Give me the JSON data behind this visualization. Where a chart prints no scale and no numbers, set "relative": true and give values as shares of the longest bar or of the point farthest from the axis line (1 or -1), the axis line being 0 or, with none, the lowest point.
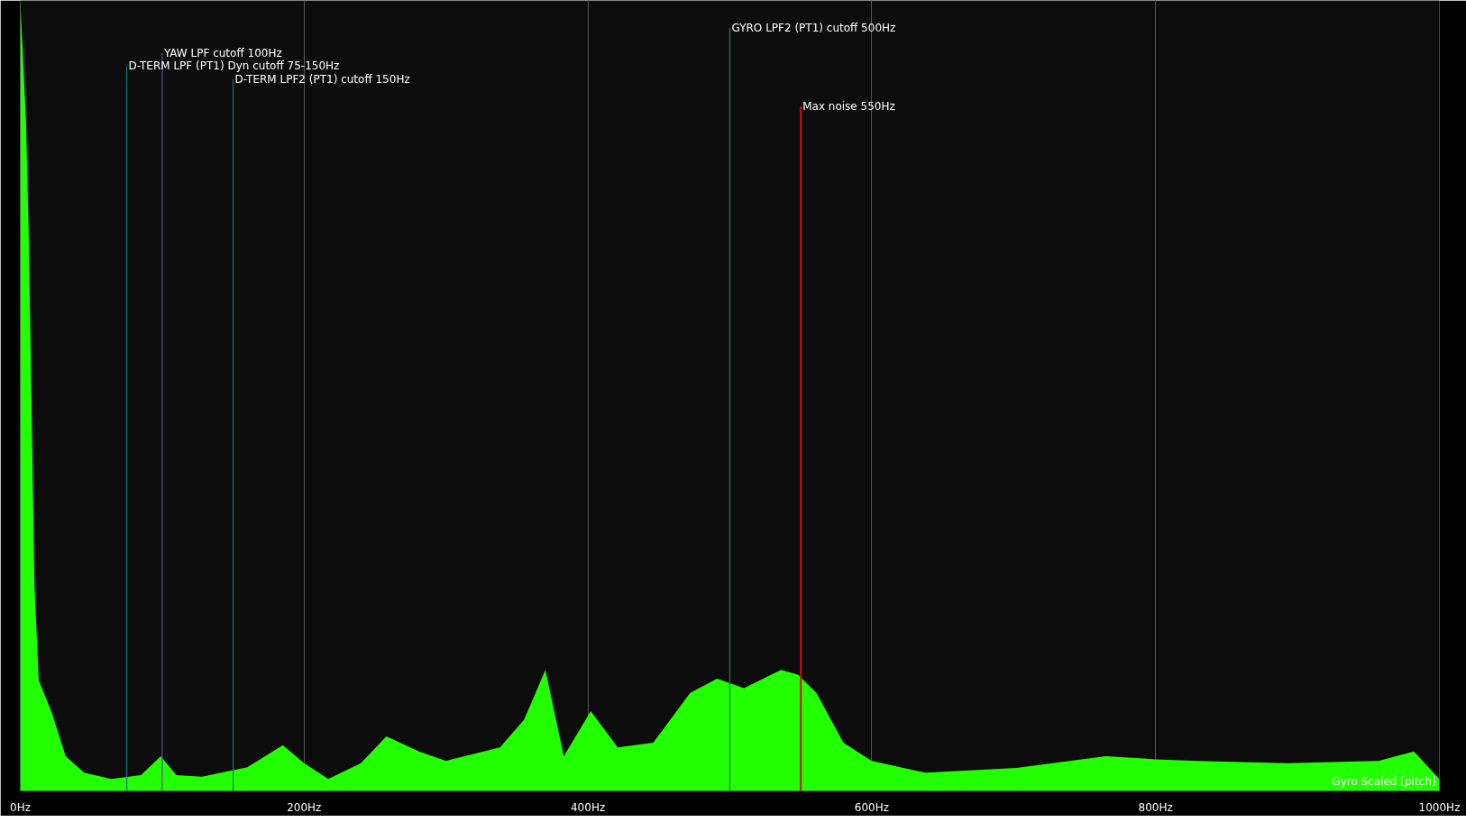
{
  "chart_data": {
    "type": "area",
    "relative": true,
    "x": [
      0,
      4,
      6,
      10,
      13,
      22,
      32,
      45,
      64,
      85,
      99,
      110,
      128,
      160,
      185,
      200,
      217,
      240,
      258,
      281,
      300,
      338,
      355,
      370,
      383,
      402,
      421,
      446,
      472,
      491,
      510,
      536,
      548,
      561,
      580,
      600,
      638,
      702,
      765,
      800,
      829,
      893,
      957,
      982,
      1000
    ],
    "series": [
      {
        "color": "#22ff00",
        "values": [
          1.0,
          0.85,
          0.7,
          0.26,
          0.14,
          0.1,
          0.044,
          0.023,
          0.015,
          0.02,
          0.044,
          0.02,
          0.018,
          0.03,
          0.058,
          0.035,
          0.015,
          0.035,
          0.069,
          0.05,
          0.038,
          0.055,
          0.09,
          0.153,
          0.044,
          0.101,
          0.055,
          0.061,
          0.124,
          0.142,
          0.13,
          0.153,
          0.147,
          0.124,
          0.061,
          0.038,
          0.023,
          0.029,
          0.044,
          0.04,
          0.038,
          0.035,
          0.038,
          0.05,
          0.015
        ]
      }
    ],
    "xlim": [
      0,
      1000
    ],
    "xticks": [
      {
        "value": 0,
        "label": "0Hz"
      },
      {
        "value": 200,
        "label": "200Hz"
      },
      {
        "value": 400,
        "label": "400Hz"
      },
      {
        "value": 600,
        "label": "600Hz"
      },
      {
        "value": 800,
        "label": "800Hz"
      },
      {
        "value": 1000,
        "label": "1000Hz"
      }
    ],
    "grid": "x",
    "ref_lines": [
      {
        "axis": "x",
        "value": 75,
        "label": "D-TERM LPF (PT1) Dyn cutoff 75-150Hz",
        "color": "#1f6f73"
      },
      {
        "axis": "x",
        "value": 100,
        "label": "YAW LPF cutoff 100Hz",
        "color": "#5a4f9a"
      },
      {
        "axis": "x",
        "value": 150,
        "label": "D-TERM LPF2 (PT1) cutoff 150Hz",
        "color": "#1f6f73"
      },
      {
        "axis": "x",
        "value": 500,
        "label": "GYRO LPF2 (PT1) cutoff 500Hz",
        "color": "#1f7f5f"
      },
      {
        "axis": "x",
        "value": 550,
        "label": "Max noise 550Hz",
        "color": "#cc1111"
      }
    ],
    "annotations": [
      "Gyro Scaled [pitch]"
    ]
  }
}
